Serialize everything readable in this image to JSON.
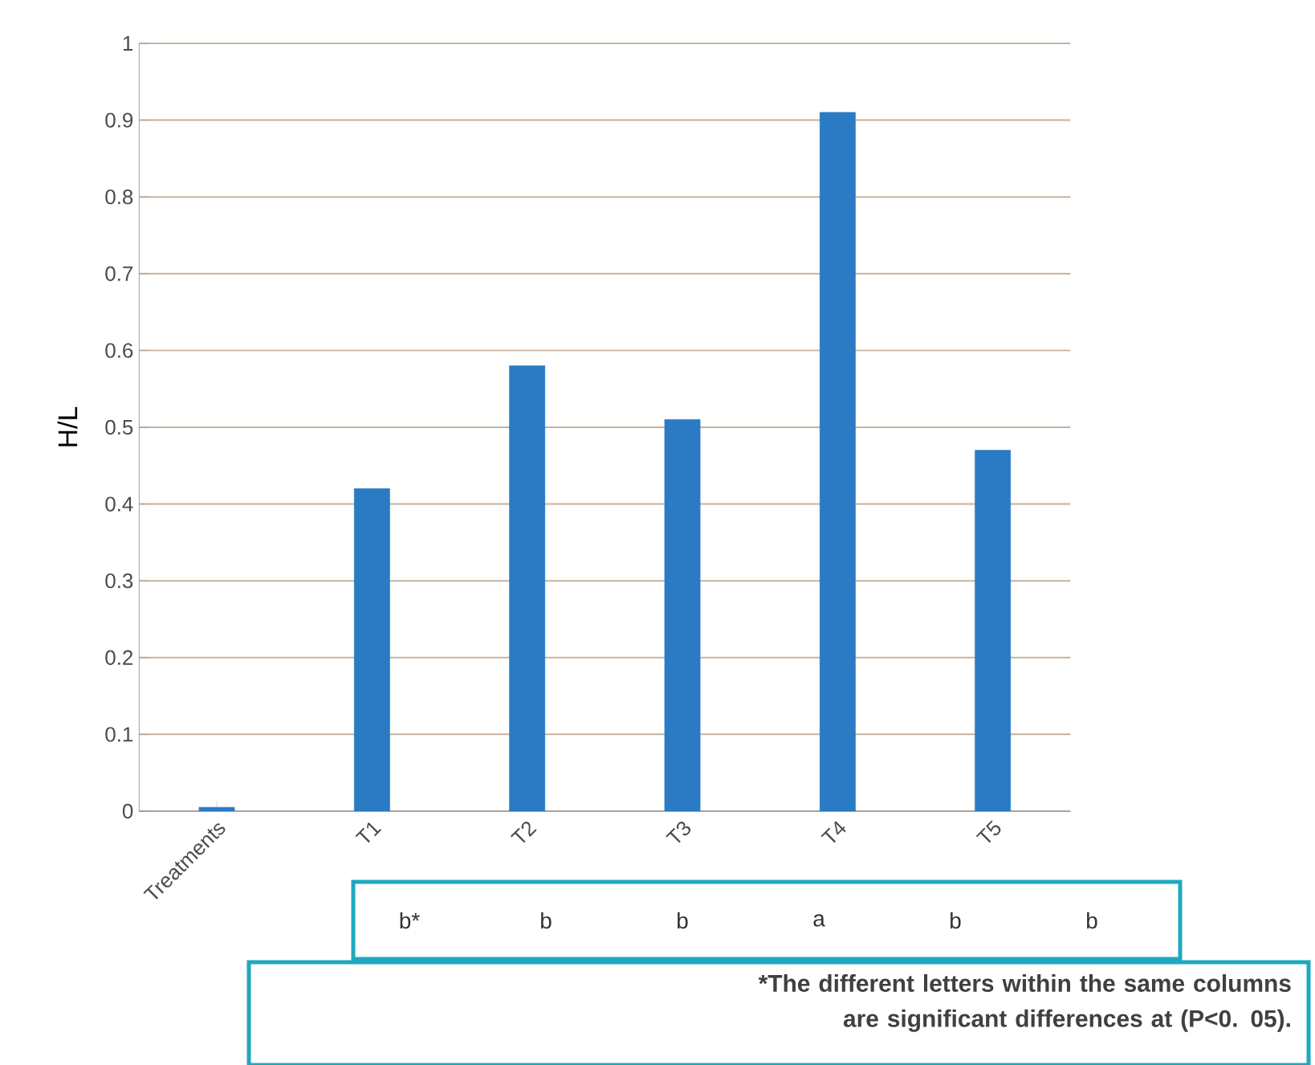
{
  "chart_data": {
    "type": "bar",
    "categories": [
      "Treatments",
      "T1",
      "T2",
      "T3",
      "T4",
      "T5"
    ],
    "values": [
      0.005,
      0.42,
      0.58,
      0.51,
      0.91,
      0.47
    ],
    "color": "#2a7bc4",
    "ylabel": "H/L",
    "ylim": [
      0,
      1
    ],
    "yticks": [
      0,
      0.1,
      0.2,
      0.3,
      0.4,
      0.5,
      0.6,
      0.7,
      0.8,
      0.9,
      1
    ],
    "grid": "y",
    "annotations": [
      "b*",
      "b",
      "b",
      "a",
      "b",
      "b",
      "*The different letters within the same columns are significant differences at (P<0. 05)."
    ]
  }
}
